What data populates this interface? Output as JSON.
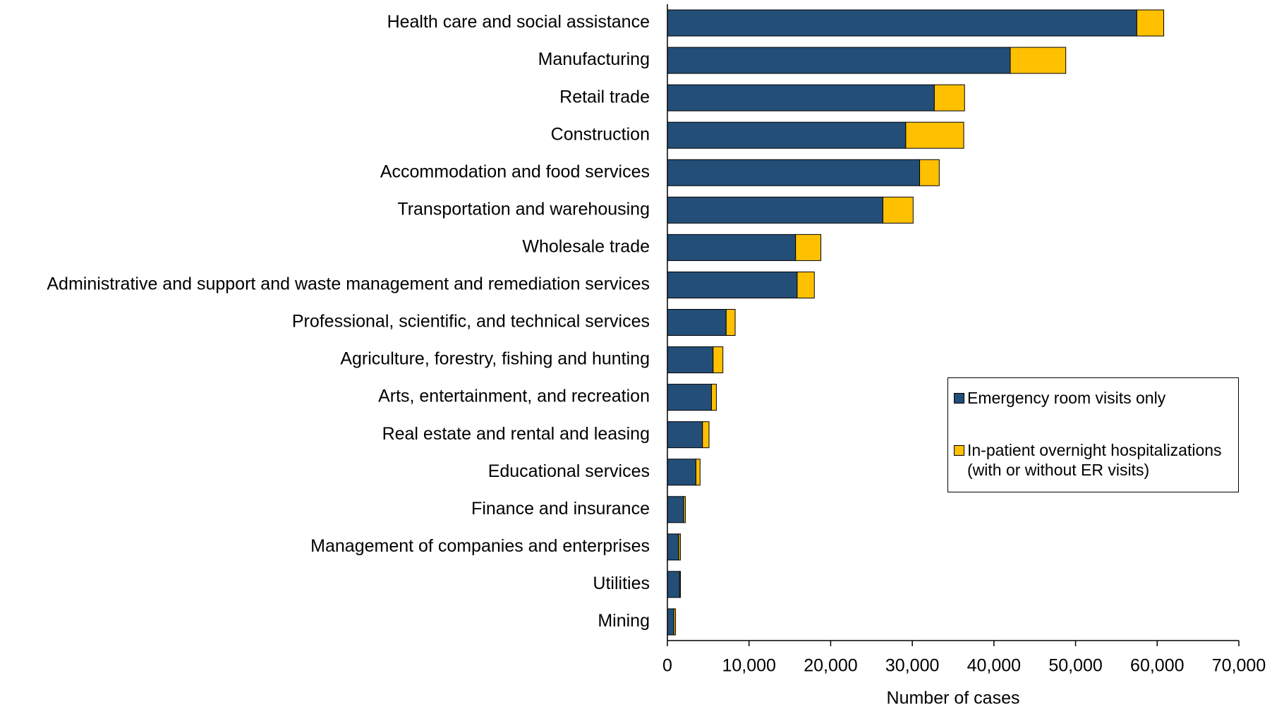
{
  "chart_data": {
    "type": "stacked_barh",
    "x_label": "Number of cases",
    "categories": [
      "Health care and social assistance",
      "Manufacturing",
      "Retail trade",
      "Construction",
      "Accommodation and food services",
      "Transportation and warehousing",
      "Wholesale trade",
      "Administrative and support and waste management and remediation services",
      "Professional, scientific, and technical services",
      "Agriculture, forestry, fishing and hunting",
      "Arts, entertainment, and recreation",
      "Real estate and rental and leasing",
      "Educational services",
      "Finance and insurance",
      "Management of companies and enterprises",
      "Utilities",
      "Mining"
    ],
    "series": [
      {
        "name": "Emergency room visits only",
        "color": "#234e78",
        "values": [
          57500,
          42000,
          32700,
          29200,
          30900,
          26400,
          15700,
          15900,
          7200,
          5600,
          5400,
          4300,
          3500,
          2000,
          1400,
          1500,
          800
        ]
      },
      {
        "name": "In-patient overnight hospitalizations (with or without ER visits)",
        "color": "#ffc000",
        "values": [
          3300,
          6800,
          3700,
          7100,
          2400,
          3700,
          3100,
          2100,
          1100,
          1200,
          600,
          800,
          500,
          200,
          200,
          100,
          200
        ]
      }
    ],
    "xlim": [
      0,
      70000
    ],
    "xticks": [
      0,
      {
        "value": 10000,
        "label": "10,000"
      },
      {
        "value": 20000,
        "label": "20,000"
      },
      {
        "value": 30000,
        "label": "30,000"
      },
      {
        "value": 40000,
        "label": "40,000"
      },
      {
        "value": 50000,
        "label": "50,000"
      },
      {
        "value": 60000,
        "label": "60,000"
      },
      {
        "value": 70000,
        "label": "70,000"
      }
    ],
    "legend": "right"
  }
}
